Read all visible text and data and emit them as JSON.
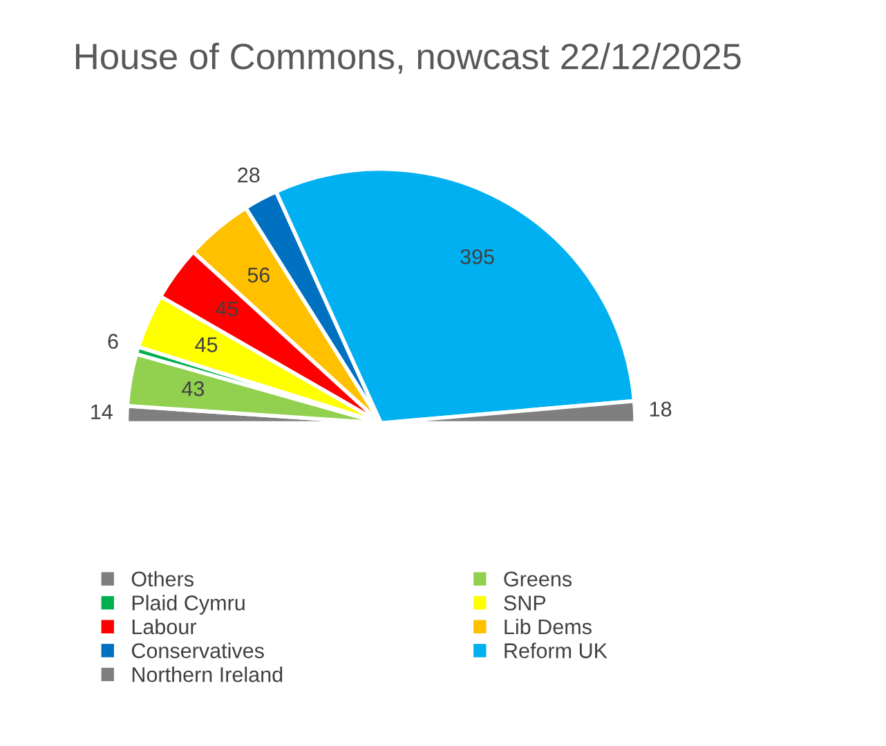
{
  "chart_data": {
    "type": "pie",
    "title": "House of Commons, nowcast 22/12/2025",
    "categories": [
      "Others",
      "Greens",
      "Plaid Cymru",
      "SNP",
      "Labour",
      "Lib Dems",
      "Conservatives",
      "Reform UK",
      "Northern Ireland"
    ],
    "values": [
      14,
      43,
      6,
      45,
      45,
      56,
      28,
      395,
      18
    ],
    "colors": [
      "#7f7f7f",
      "#92d050",
      "#00b050",
      "#ffff00",
      "#ff0000",
      "#ffc000",
      "#0070c0",
      "#00b0f0",
      "#7f7f7f"
    ],
    "data_labels": true,
    "legend": "bottom"
  }
}
